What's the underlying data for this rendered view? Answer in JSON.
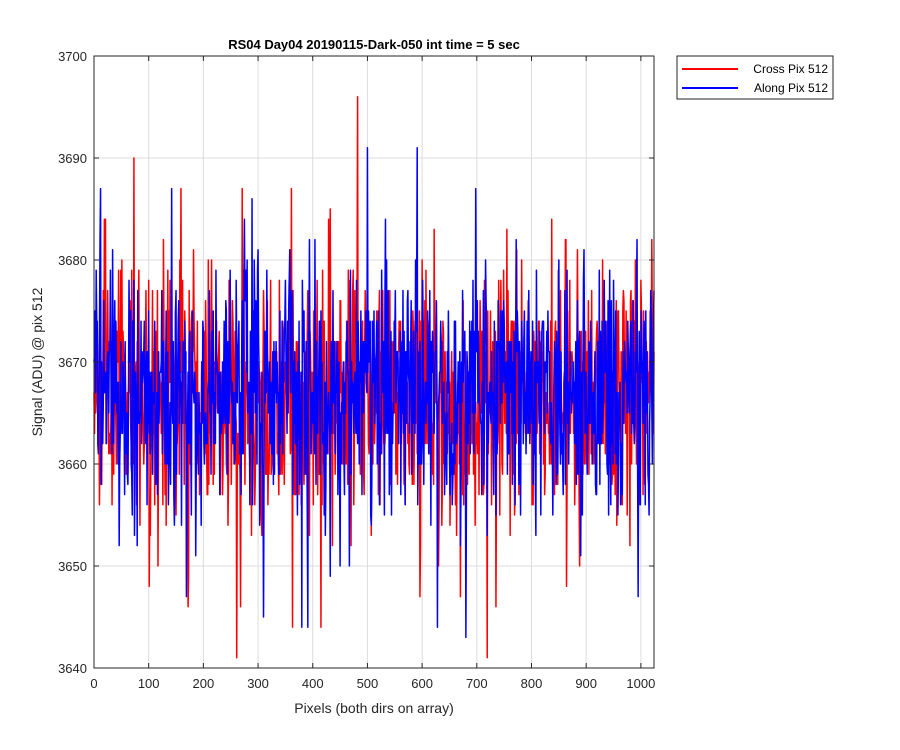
{
  "chart_data": {
    "type": "line",
    "title": "RS04 Day04 20190115-Dark-050 int time = 5 sec",
    "xlabel": "Pixels (both dirs on array)",
    "ylabel": "Signal (ADU) @ pix 512",
    "xlim": [
      0,
      1024
    ],
    "ylim": [
      3640,
      3700
    ],
    "xticks": [
      0,
      100,
      200,
      300,
      400,
      500,
      600,
      700,
      800,
      900,
      1000
    ],
    "yticks": [
      3640,
      3650,
      3660,
      3670,
      3680,
      3690,
      3700
    ],
    "grid": true,
    "legend_position": "outside-top-right",
    "x_step": 1,
    "series": [
      {
        "name": "Cross Pix 512",
        "color": "#ff0000",
        "mean": 3667,
        "noise_sd": 6.5,
        "notable_points": [
          [
            73,
            3690
          ],
          [
            101,
            3648
          ],
          [
            172,
            3646
          ],
          [
            261,
            3641
          ],
          [
            268,
            3646
          ],
          [
            363,
            3644
          ],
          [
            415,
            3644
          ],
          [
            482,
            3696
          ],
          [
            719,
            3641
          ],
          [
            735,
            3646
          ],
          [
            888,
            3650
          ]
        ]
      },
      {
        "name": "Along Pix 512",
        "color": "#0000ff",
        "mean": 3667,
        "noise_sd": 6.3,
        "notable_points": [
          [
            12,
            3687
          ],
          [
            310,
            3645
          ],
          [
            380,
            3644
          ],
          [
            391,
            3644
          ],
          [
            500,
            3691
          ],
          [
            591,
            3691
          ],
          [
            628,
            3644
          ],
          [
            680,
            3643
          ],
          [
            995,
            3647
          ]
        ]
      }
    ]
  }
}
